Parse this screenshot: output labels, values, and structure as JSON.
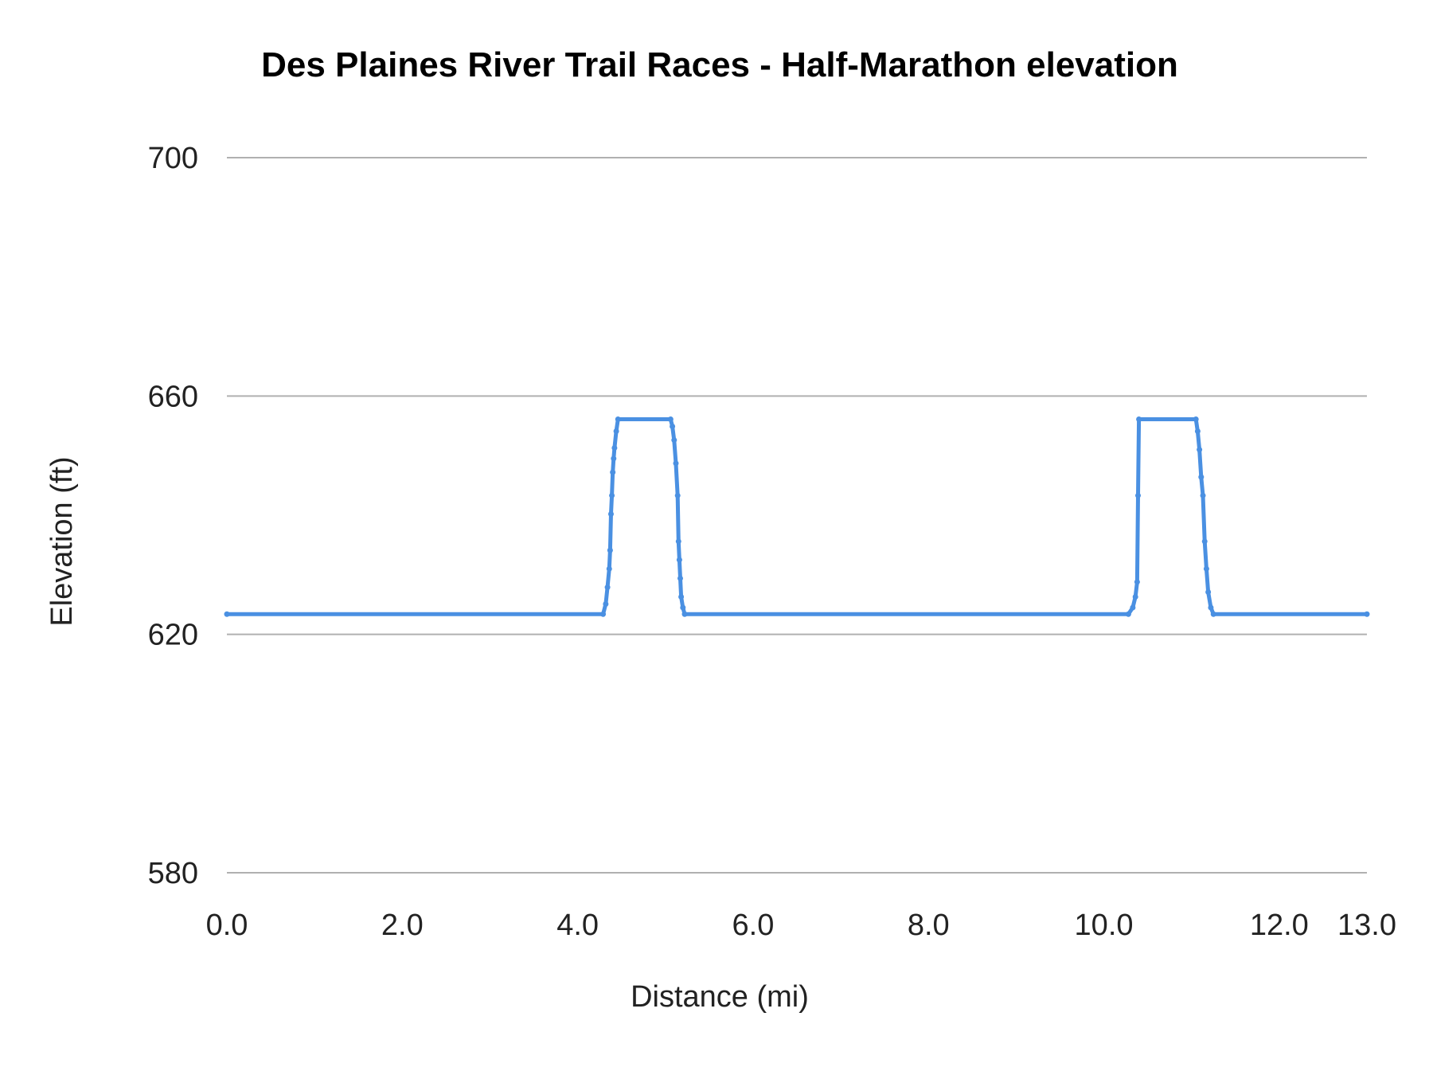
{
  "chart_data": {
    "type": "line",
    "title": "Des Plaines River Trail Races - Half-Marathon elevation",
    "xlabel": "Distance (mi)",
    "ylabel": "Elevation (ft)",
    "xlim": [
      0,
      13
    ],
    "ylim": [
      580,
      700
    ],
    "x_ticks": [
      "0.0",
      "2.0",
      "4.0",
      "6.0",
      "8.0",
      "10.0",
      "12.0",
      "13.0"
    ],
    "x_tick_values": [
      0,
      2,
      4,
      6,
      8,
      10,
      12,
      13
    ],
    "y_ticks": [
      "580",
      "620",
      "660",
      "700"
    ],
    "y_tick_values": [
      580,
      620,
      660,
      700
    ],
    "grid": "horizontal",
    "legend": "none",
    "colors": {
      "line": "#4a90e2",
      "grid": "#b0b0b0"
    },
    "series": [
      {
        "x": [
          0,
          4.29,
          4.32,
          4.34,
          4.36,
          4.37,
          4.38,
          4.39,
          4.4,
          4.41,
          4.42,
          4.44,
          4.46,
          5.06,
          5.08,
          5.1,
          5.12,
          5.14,
          5.15,
          5.16,
          5.17,
          5.18,
          5.2,
          5.22,
          10.28,
          10.33,
          10.36,
          10.38,
          10.39,
          10.4,
          11.05,
          11.07,
          11.09,
          11.11,
          11.13,
          11.15,
          11.17,
          11.19,
          11.22,
          11.25,
          13.0
        ],
        "y": [
          623.4,
          623.4,
          625.1,
          627.9,
          631.0,
          634.1,
          640.2,
          643.3,
          647.2,
          649.5,
          651.3,
          654.1,
          656.1,
          656.1,
          654.9,
          652.6,
          648.7,
          643.3,
          635.6,
          632.5,
          629.4,
          626.3,
          624.5,
          623.4,
          623.4,
          624.5,
          626.3,
          628.8,
          643.3,
          656.1,
          656.1,
          654.1,
          651.0,
          646.4,
          643.3,
          635.6,
          631.0,
          627.1,
          624.5,
          623.4,
          623.4
        ]
      }
    ]
  }
}
